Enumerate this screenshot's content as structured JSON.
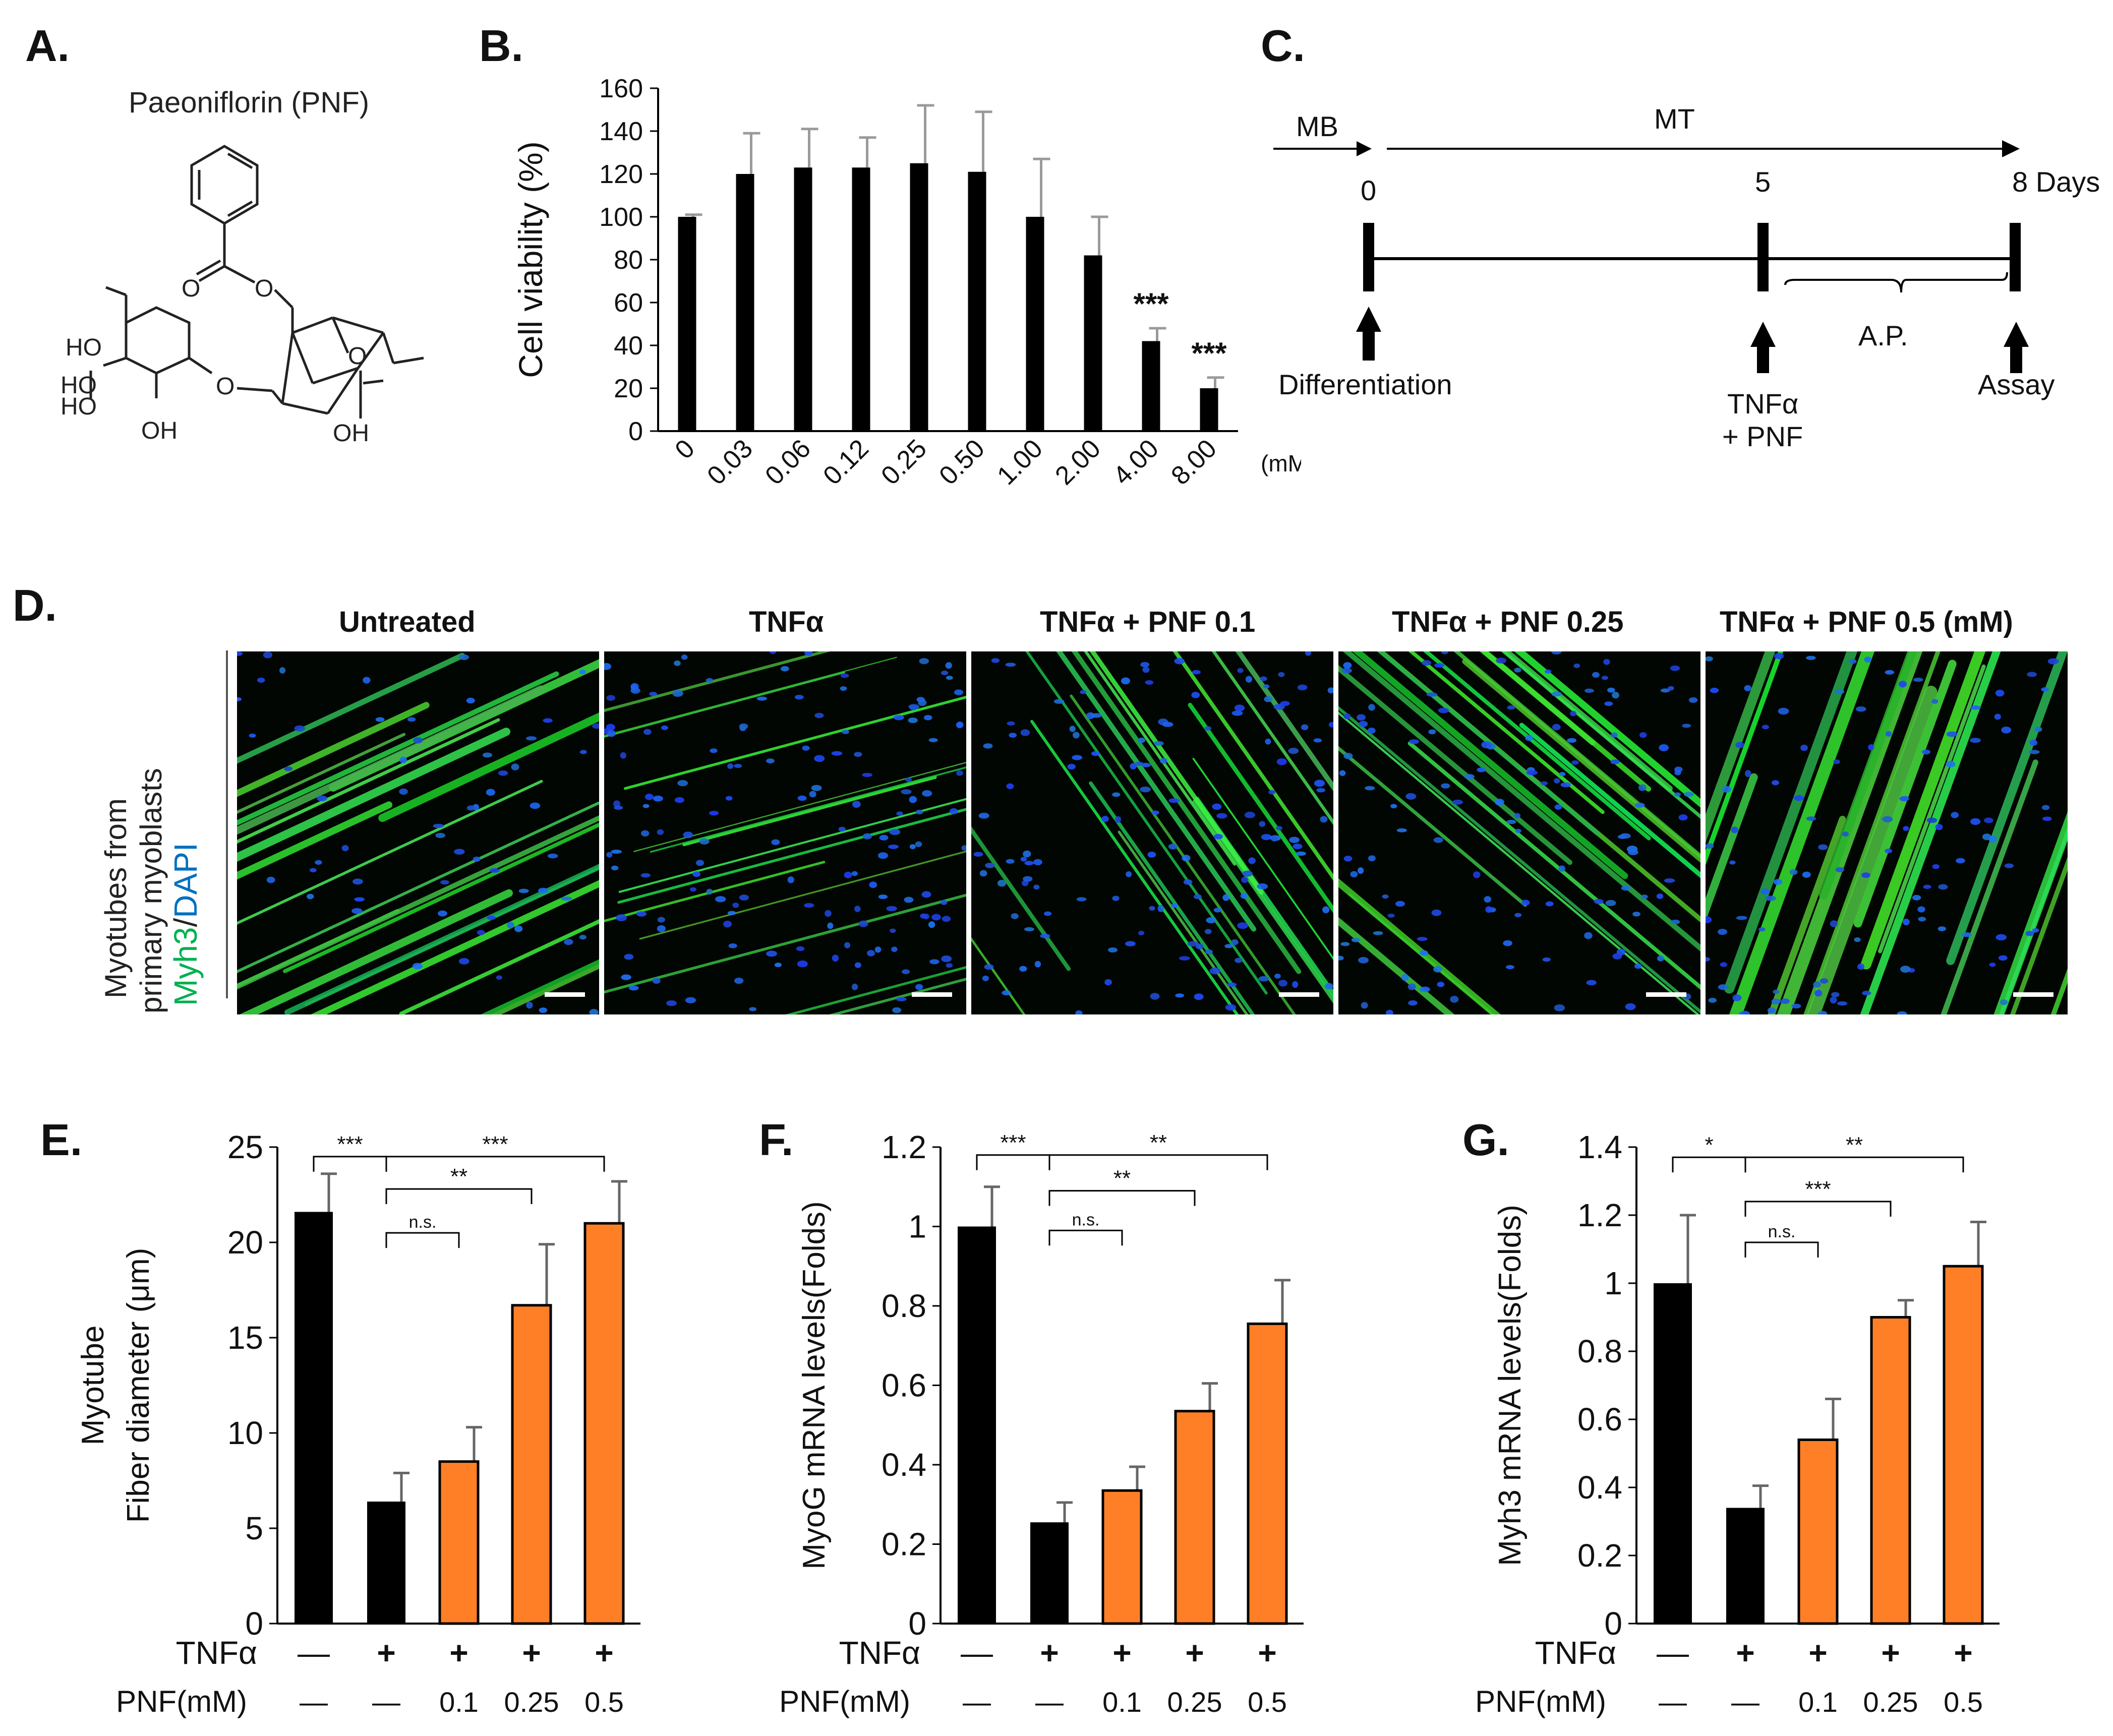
{
  "panels": {
    "a": {
      "label": "A.",
      "title": "Paeoniflorin (PNF)",
      "atoms": [
        "O",
        "O",
        "O",
        "O",
        "HO",
        "HO",
        "HO",
        "OH",
        "OH"
      ]
    },
    "b": {
      "label": "B.",
      "unit": "(mM)"
    },
    "c": {
      "label": "C.",
      "mb": "MB",
      "mt": "MT",
      "day0": "0",
      "day5": "5",
      "day8": "8 Days",
      "differentiation": "Differentiation",
      "tnf": "TNFα",
      "pnf": "+ PNF",
      "ap": "A.P.",
      "assay": "Assay"
    },
    "d": {
      "label": "D.",
      "titles": [
        "Untreated",
        "TNFα",
        "TNFα + PNF 0.1",
        "TNFα + PNF 0.25",
        "TNFα + PNF 0.5 (mM)"
      ],
      "ylabel_line1": "Myotubes from",
      "ylabel_line2": "primary myoblasts",
      "stain_myh3": "Myh3",
      "stain_slash": "/",
      "stain_dapi": "DAPI"
    },
    "e": {
      "label": "E."
    },
    "f": {
      "label": "F."
    },
    "g": {
      "label": "G."
    }
  },
  "colors": {
    "black_bar": "#000000",
    "orange_bar": "#ff7f27",
    "myh3_green": "#00b050",
    "dapi_blue": "#0070c0"
  },
  "chart_data": [
    {
      "id": "B",
      "type": "bar",
      "categories": [
        "0",
        "0.03",
        "0.06",
        "0.12",
        "0.25",
        "0.50",
        "1.00",
        "2.00",
        "4.00",
        "8.00"
      ],
      "values": [
        100,
        120,
        123,
        123,
        125,
        121,
        100,
        82,
        42,
        20
      ],
      "errors": [
        1,
        19,
        18,
        14,
        27,
        28,
        27,
        18,
        6,
        5
      ],
      "annotations": [
        "",
        "",
        "",
        "",
        "",
        "",
        "",
        "",
        "***",
        "***"
      ],
      "ylabel": "Cell viability (%)",
      "xlabel": "(mM)",
      "ylim": [
        0,
        160
      ],
      "yticks": [
        0,
        20,
        40,
        60,
        80,
        100,
        120,
        140,
        160
      ],
      "ytick_labels": [
        "0",
        "20",
        "40",
        "60",
        "80",
        "100",
        "120",
        "140",
        "160"
      ]
    },
    {
      "id": "E",
      "type": "bar",
      "ylabel_line1": "Myotube",
      "ylabel_line2": "Fiber diameter (μm)",
      "values": [
        21.6,
        6.4,
        8.5,
        16.7,
        21.0
      ],
      "errors": [
        2.0,
        1.5,
        1.8,
        3.2,
        2.2
      ],
      "ylim": [
        0,
        25
      ],
      "yticks": [
        0,
        5,
        10,
        15,
        20,
        25
      ],
      "ytick_labels": [
        "0",
        "5",
        "10",
        "15",
        "20",
        "25"
      ],
      "bar_colors": [
        "black",
        "black",
        "orange",
        "orange",
        "orange"
      ],
      "row1_label": "TNFα",
      "row1": [
        "—",
        "+",
        "+",
        "+",
        "+"
      ],
      "row2_label": "PNF(mM)",
      "row2": [
        "—",
        "—",
        "0.1",
        "0.25",
        "0.5"
      ],
      "brackets": [
        {
          "from": 0,
          "to": 1,
          "y": 24.5,
          "label": "***"
        },
        {
          "from": 1,
          "to": 4,
          "y": 24.5,
          "label": "***"
        },
        {
          "from": 1,
          "to": 3,
          "y": 22.8,
          "label": "**"
        },
        {
          "from": 1,
          "to": 2,
          "y": 20.5,
          "label": "n.s."
        }
      ]
    },
    {
      "id": "F",
      "type": "bar",
      "ylabel": "MyoG mRNA levels(Folds)",
      "values": [
        1.0,
        0.255,
        0.335,
        0.535,
        0.755
      ],
      "errors": [
        0.1,
        0.05,
        0.06,
        0.07,
        0.11
      ],
      "ylim": [
        0,
        1.2
      ],
      "yticks": [
        0,
        0.2,
        0.4,
        0.6,
        0.8,
        1.0,
        1.2
      ],
      "ytick_labels": [
        "0",
        "0.2",
        "0.4",
        "0.6",
        "0.8",
        "1",
        "1.2"
      ],
      "bar_colors": [
        "black",
        "black",
        "orange",
        "orange",
        "orange"
      ],
      "row1_label": "TNFα",
      "row1": [
        "—",
        "+",
        "+",
        "+",
        "+"
      ],
      "row2_label": "PNF(mM)",
      "row2": [
        "—",
        "—",
        "0.1",
        "0.25",
        "0.5"
      ],
      "brackets": [
        {
          "from": 0,
          "to": 1,
          "y": 1.18,
          "label": "***"
        },
        {
          "from": 1,
          "to": 4,
          "y": 1.18,
          "label": "**"
        },
        {
          "from": 1,
          "to": 3,
          "y": 1.09,
          "label": "**"
        },
        {
          "from": 1,
          "to": 2,
          "y": 0.99,
          "label": "n.s."
        }
      ]
    },
    {
      "id": "G",
      "type": "bar",
      "ylabel": "Myh3 mRNA levels(Folds)",
      "values": [
        1.0,
        0.34,
        0.54,
        0.9,
        1.05
      ],
      "errors": [
        0.2,
        0.065,
        0.12,
        0.05,
        0.13
      ],
      "ylim": [
        0,
        1.4
      ],
      "yticks": [
        0,
        0.2,
        0.4,
        0.6,
        0.8,
        1.0,
        1.2,
        1.4
      ],
      "ytick_labels": [
        "0",
        "0.2",
        "0.4",
        "0.6",
        "0.8",
        "1",
        "1.2",
        "1.4"
      ],
      "bar_colors": [
        "black",
        "black",
        "orange",
        "orange",
        "orange"
      ],
      "row1_label": "TNFα",
      "row1": [
        "—",
        "+",
        "+",
        "+",
        "+"
      ],
      "row2_label": "PNF(mM)",
      "row2": [
        "—",
        "—",
        "0.1",
        "0.25",
        "0.5"
      ],
      "brackets": [
        {
          "from": 0,
          "to": 1,
          "y": 1.37,
          "label": "*"
        },
        {
          "from": 1,
          "to": 4,
          "y": 1.37,
          "label": "**"
        },
        {
          "from": 1,
          "to": 3,
          "y": 1.24,
          "label": "***"
        },
        {
          "from": 1,
          "to": 2,
          "y": 1.12,
          "label": "n.s."
        }
      ]
    }
  ]
}
